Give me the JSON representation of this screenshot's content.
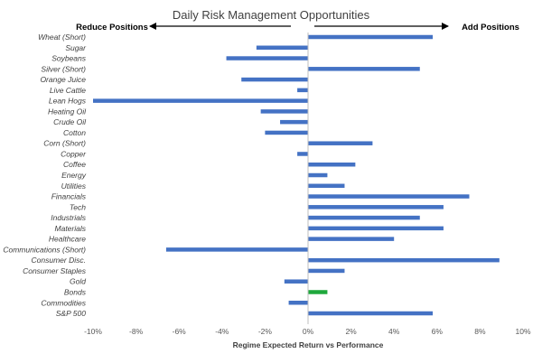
{
  "chart_data": {
    "type": "bar",
    "orientation": "horizontal",
    "title": "Daily Risk Management Opportunities",
    "left_label": "Reduce Positions",
    "right_label": "Add Positions",
    "xlabel": "Regime Expected Return vs Performance",
    "xlim": [
      -0.1,
      0.1
    ],
    "xticks": [
      -0.1,
      -0.08,
      -0.06,
      -0.04,
      -0.02,
      0,
      0.02,
      0.04,
      0.06,
      0.08,
      0.1
    ],
    "xtick_labels": [
      "-10%",
      "-8%",
      "-6%",
      "-4%",
      "-2%",
      "0%",
      "2%",
      "4%",
      "6%",
      "8%",
      "10%"
    ],
    "grid": false,
    "colors": {
      "default": "#4472c4",
      "highlight": "#1fa83c",
      "axis": "#bfbfbf"
    },
    "categories": [
      "Wheat (Short)",
      "Sugar",
      "Soybeans",
      "Silver (Short)",
      "Orange Juice",
      "Live Cattle",
      "Lean Hogs",
      "Heating Oil",
      "Crude Oil",
      "Cotton",
      "Corn (Short)",
      "Copper",
      "Coffee",
      "Energy",
      "Utilities",
      "Financials",
      "Tech",
      "Industrials",
      "Materials",
      "Healthcare",
      "Communications (Short)",
      "Consumer Disc.",
      "Consumer Staples",
      "Gold",
      "Bonds",
      "Commodities",
      "S&P 500"
    ],
    "values": [
      0.058,
      -0.024,
      -0.038,
      0.052,
      -0.031,
      -0.005,
      -0.1,
      -0.022,
      -0.013,
      -0.02,
      0.03,
      -0.005,
      0.022,
      0.009,
      0.017,
      0.075,
      0.063,
      0.052,
      0.063,
      0.04,
      -0.066,
      0.089,
      0.017,
      -0.011,
      0.009,
      -0.009,
      0.058
    ],
    "highlight_index": 24
  }
}
